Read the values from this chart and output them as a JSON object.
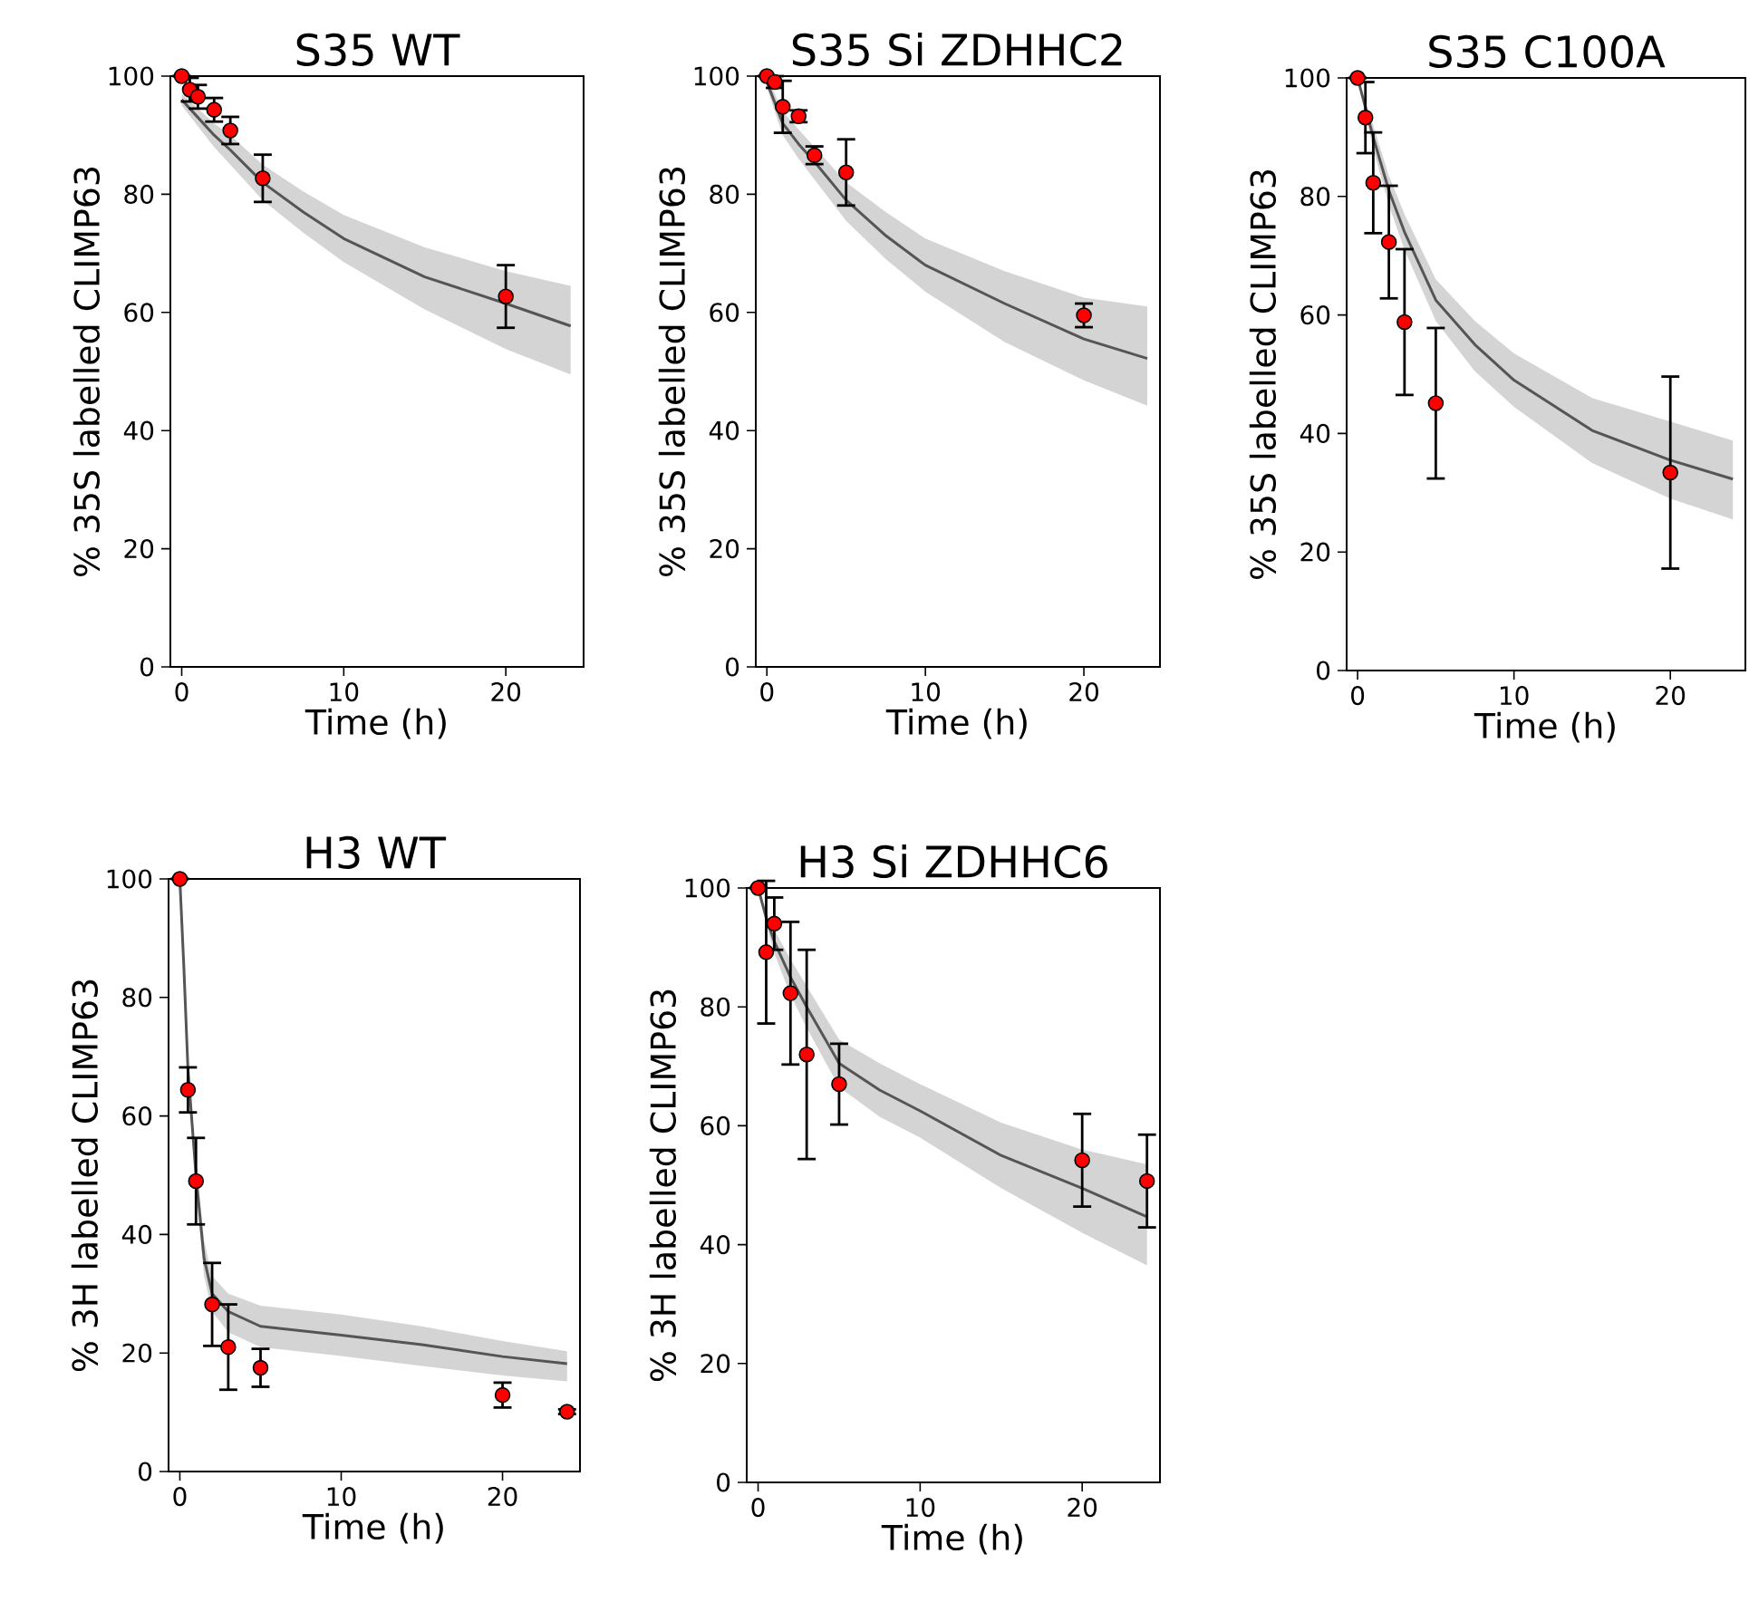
{
  "chart_data": [
    {
      "type": "scatter",
      "title": "S35 WT",
      "xlabel": "Time (h)",
      "ylabel": "% 35S labelled CLIMP63",
      "xlim": [
        -0.7,
        24.8
      ],
      "ylim": [
        0,
        100
      ],
      "xticks": [
        0,
        10,
        20
      ],
      "yticks": [
        0,
        20,
        40,
        60,
        80,
        100
      ],
      "series": [
        {
          "type": "line",
          "color": "#555555",
          "x": [
            0,
            1,
            2,
            3,
            5,
            7.5,
            10,
            15,
            20,
            24
          ],
          "values": [
            96,
            93,
            90,
            87.5,
            82,
            77,
            72.5,
            66,
            61.5,
            57.7
          ],
          "lower": [
            95,
            91.5,
            88,
            85,
            79,
            73.5,
            68.5,
            60.5,
            53.8,
            49.5
          ],
          "upper": [
            97,
            94.5,
            92,
            90,
            85,
            80.5,
            76.5,
            71,
            67,
            64.5
          ]
        },
        {
          "marker": "circle",
          "color": "#ff0000",
          "x": [
            0,
            0.5,
            1,
            2,
            3,
            5,
            20
          ],
          "values": [
            100,
            97.7,
            96.5,
            94.3,
            90.8,
            82.7,
            62.7
          ],
          "errors": [
            null,
            2,
            2,
            2,
            2.3,
            4,
            5.3
          ]
        }
      ]
    },
    {
      "type": "scatter",
      "title": "S35 Si ZDHHC2",
      "xlabel": "Time (h)",
      "ylabel": "% 35S labelled CLIMP63",
      "xlim": [
        -0.7,
        24.8
      ],
      "ylim": [
        0,
        100
      ],
      "xticks": [
        0,
        10,
        20
      ],
      "yticks": [
        0,
        20,
        40,
        60,
        80,
        100
      ],
      "series": [
        {
          "type": "line",
          "color": "#555555",
          "x": [
            0,
            1,
            2,
            3,
            5,
            7.5,
            10,
            15,
            20,
            24
          ],
          "values": [
            99,
            92,
            88.5,
            85.5,
            79,
            73,
            68,
            61.5,
            55.5,
            52.2
          ],
          "lower": [
            98,
            90,
            86,
            82.5,
            75.5,
            69,
            63.5,
            55,
            48.5,
            44.2
          ],
          "upper": [
            100,
            94,
            91,
            88,
            82,
            77,
            72.5,
            67,
            62.5,
            61
          ]
        },
        {
          "marker": "circle",
          "color": "#ff0000",
          "x": [
            0,
            0.5,
            1,
            2,
            3,
            5,
            20
          ],
          "values": [
            100,
            99,
            94.8,
            93.2,
            86.6,
            83.7,
            59.5
          ],
          "errors": [
            null,
            1,
            4.4,
            1,
            1.5,
            5.6,
            2
          ]
        }
      ]
    },
    {
      "type": "scatter",
      "title": "S35 C100A",
      "xlabel": "Time (h)",
      "ylabel": "% 35S labelled CLIMP63",
      "xlim": [
        -0.7,
        24.8
      ],
      "ylim": [
        0,
        100
      ],
      "xticks": [
        0,
        10,
        20
      ],
      "yticks": [
        0,
        20,
        40,
        60,
        80,
        100
      ],
      "series": [
        {
          "type": "line",
          "color": "#555555",
          "x": [
            0,
            0.5,
            1,
            2,
            3,
            5,
            7.5,
            10,
            15,
            20,
            24
          ],
          "values": [
            100,
            95,
            90,
            81,
            74,
            62.5,
            55,
            49,
            40.5,
            35.5,
            32.3
          ],
          "lower": [
            100,
            94,
            88,
            78.5,
            71,
            59,
            50.5,
            44.5,
            35,
            29,
            25.5
          ],
          "upper": [
            100,
            96,
            92,
            83.5,
            77,
            66,
            59,
            53.5,
            46,
            42,
            38.8
          ]
        },
        {
          "marker": "circle",
          "color": "#ff0000",
          "x": [
            0,
            0.5,
            1,
            2,
            3,
            5,
            20
          ],
          "values": [
            100,
            93.3,
            82.3,
            72.3,
            58.8,
            45.1,
            33.4
          ],
          "errors": [
            null,
            6,
            8.5,
            9.5,
            12.3,
            12.7,
            16.2
          ]
        }
      ]
    },
    {
      "type": "scatter",
      "title": "H3 WT",
      "xlabel": "Time (h)",
      "ylabel": "% 3H labelled CLIMP63",
      "xlim": [
        -0.7,
        24.8
      ],
      "ylim": [
        0,
        100
      ],
      "xticks": [
        0,
        10,
        20
      ],
      "yticks": [
        0,
        20,
        40,
        60,
        80,
        100
      ],
      "series": [
        {
          "type": "line",
          "color": "#555555",
          "x": [
            0,
            0.25,
            0.5,
            1,
            1.5,
            2,
            3,
            5,
            10,
            15,
            20,
            24
          ],
          "values": [
            100,
            85,
            68,
            50,
            36,
            30,
            27,
            24.5,
            23,
            21.4,
            19.4,
            18.2
          ],
          "lower": [
            100,
            84,
            66,
            47.5,
            33,
            27,
            23.5,
            21,
            19.5,
            17.8,
            16.2,
            15.2
          ],
          "upper": [
            100,
            86,
            70,
            52.5,
            39,
            33,
            30,
            28,
            26.5,
            24.5,
            22,
            20.3
          ]
        },
        {
          "marker": "circle",
          "color": "#ff0000",
          "x": [
            0,
            0.5,
            1,
            2,
            3,
            5,
            20,
            24
          ],
          "values": [
            100,
            64.4,
            49,
            28.2,
            21,
            17.5,
            12.9,
            10.1
          ],
          "errors": [
            null,
            3.8,
            7.3,
            7,
            7.2,
            3.2,
            2.1,
            0.4
          ]
        }
      ]
    },
    {
      "type": "scatter",
      "title": "H3 Si ZDHHC6",
      "xlabel": "Time (h)",
      "ylabel": "% 3H labelled CLIMP63",
      "xlim": [
        -0.7,
        24.8
      ],
      "ylim": [
        0,
        100
      ],
      "xticks": [
        0,
        10,
        20
      ],
      "yticks": [
        0,
        20,
        40,
        60,
        80,
        100
      ],
      "series": [
        {
          "type": "line",
          "color": "#555555",
          "x": [
            0,
            0.5,
            1,
            2,
            3,
            5,
            7.5,
            10,
            15,
            20,
            24
          ],
          "values": [
            100,
            95,
            91,
            85,
            80,
            70.5,
            66,
            62.5,
            55,
            49.5,
            44.7
          ],
          "lower": [
            100,
            94,
            89,
            82,
            76.5,
            66.5,
            61.5,
            58,
            49.5,
            42,
            36.5
          ],
          "upper": [
            100,
            96,
            93,
            88,
            83.5,
            74.5,
            70.5,
            67,
            60.5,
            56,
            53.5
          ]
        },
        {
          "marker": "circle",
          "color": "#ff0000",
          "x": [
            0,
            0.5,
            1,
            2,
            3,
            5,
            20,
            24
          ],
          "values": [
            100,
            89.2,
            94,
            82.3,
            72,
            67,
            54.2,
            50.7
          ],
          "errors": [
            null,
            12,
            4.4,
            12,
            17.6,
            6.8,
            7.8,
            7.8
          ]
        }
      ]
    }
  ]
}
